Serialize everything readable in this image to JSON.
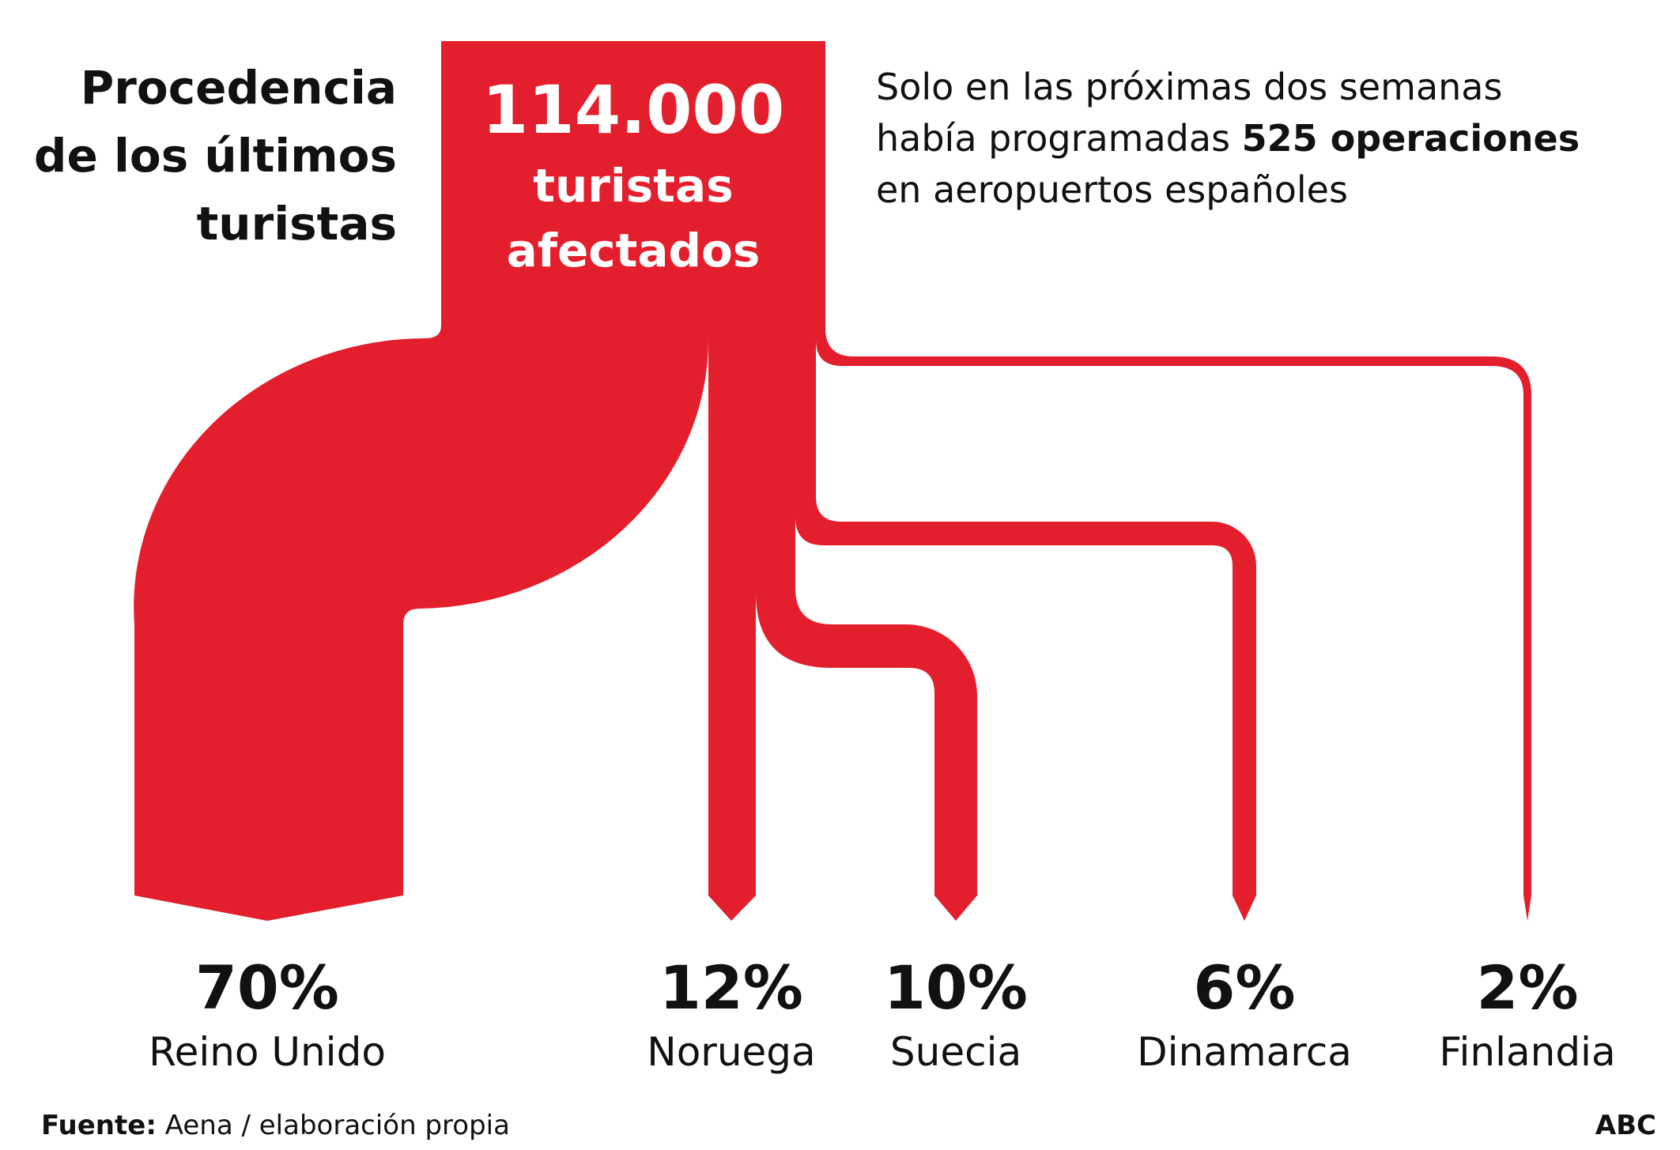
{
  "title": {
    "lines": [
      "Procedencia",
      "de los últimos",
      "turistas"
    ]
  },
  "total": {
    "number": "114.000",
    "line1": "turistas",
    "line2": "afectados"
  },
  "note": {
    "line1": "Solo en las próximas dos semanas",
    "line2_prefix": "había programadas ",
    "line2_bold": "525 operaciones",
    "line3": "en aeropuertos españoles"
  },
  "chart_data": {
    "type": "sankey",
    "total": 114000,
    "total_label": "114.000 turistas afectados",
    "flows": [
      {
        "pct_label": "70%",
        "country": "Reino Unido",
        "value": 70
      },
      {
        "pct_label": "12%",
        "country": "Noruega",
        "value": 12
      },
      {
        "pct_label": "10%",
        "country": "Suecia",
        "value": 10
      },
      {
        "pct_label": "6%",
        "country": "Dinamarca",
        "value": 6
      },
      {
        "pct_label": "2%",
        "country": "Finlandia",
        "value": 2
      }
    ]
  },
  "colors": {
    "flow": "#e41f2d",
    "text": "#111111",
    "background": "#ffffff"
  },
  "footer": {
    "source_label": "Fuente:",
    "source_text": " Aena / elaboración propia",
    "brand": "ABC"
  }
}
